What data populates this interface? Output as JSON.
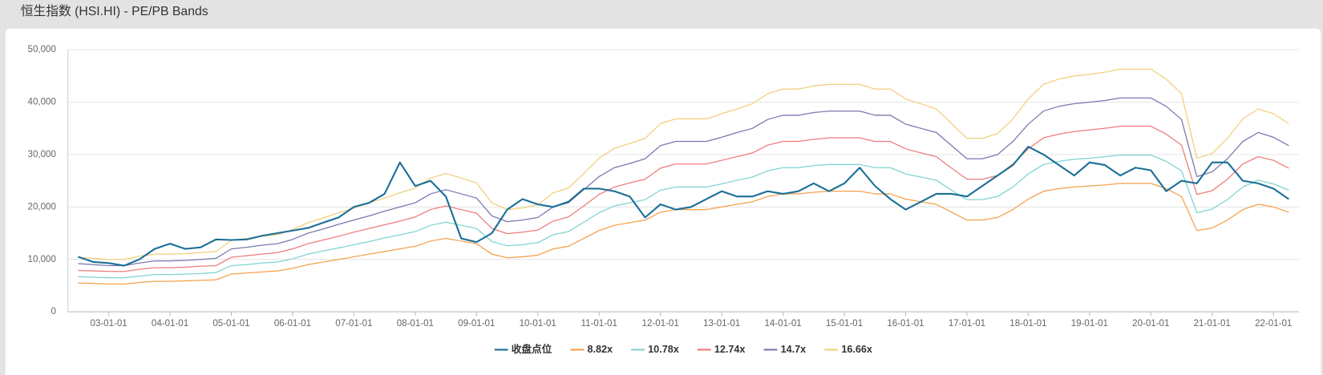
{
  "chart_data": {
    "type": "line",
    "title": "恒生指数 (HSI.HI) - PE/PB Bands",
    "x": [
      "02-07-01",
      "02-10-01",
      "03-01-01",
      "03-04-01",
      "03-07-01",
      "03-10-01",
      "04-01-01",
      "04-04-01",
      "04-07-01",
      "04-10-01",
      "05-01-01",
      "05-04-01",
      "05-07-01",
      "05-10-01",
      "06-01-01",
      "06-04-01",
      "06-07-01",
      "06-10-01",
      "07-01-01",
      "07-04-01",
      "07-07-01",
      "07-10-01",
      "08-01-01",
      "08-04-01",
      "08-07-01",
      "08-10-01",
      "09-01-01",
      "09-04-01",
      "09-07-01",
      "09-10-01",
      "10-01-01",
      "10-04-01",
      "10-07-01",
      "10-10-01",
      "11-01-01",
      "11-04-01",
      "11-07-01",
      "11-10-01",
      "12-01-01",
      "12-04-01",
      "12-07-01",
      "12-10-01",
      "13-01-01",
      "13-04-01",
      "13-07-01",
      "13-10-01",
      "14-01-01",
      "14-04-01",
      "14-07-01",
      "14-10-01",
      "15-01-01",
      "15-04-01",
      "15-07-01",
      "15-10-01",
      "16-01-01",
      "16-04-01",
      "16-07-01",
      "16-10-01",
      "17-01-01",
      "17-04-01",
      "17-07-01",
      "17-10-01",
      "18-01-01",
      "18-04-01",
      "18-07-01",
      "18-10-01",
      "19-01-01",
      "19-04-01",
      "19-07-01",
      "19-10-01",
      "20-01-01",
      "20-04-01",
      "20-07-01",
      "20-10-01",
      "21-01-01",
      "21-04-01",
      "21-07-01",
      "21-10-01",
      "22-01-01",
      "22-04-01"
    ],
    "xlim": [
      "02-05-01",
      "22-06-01"
    ],
    "xticks": [
      "03-01-01",
      "04-01-01",
      "05-01-01",
      "06-01-01",
      "07-01-01",
      "08-01-01",
      "09-01-01",
      "10-01-01",
      "11-01-01",
      "12-01-01",
      "13-01-01",
      "14-01-01",
      "15-01-01",
      "16-01-01",
      "17-01-01",
      "18-01-01",
      "19-01-01",
      "20-01-01",
      "21-01-01",
      "22-01-01"
    ],
    "ylim": [
      0,
      50000
    ],
    "yticks": [
      0,
      {
        "value": 10000,
        "label": "10,000"
      },
      {
        "value": 20000,
        "label": "20,000"
      },
      {
        "value": 30000,
        "label": "30,000"
      },
      {
        "value": 40000,
        "label": "40,000"
      },
      {
        "value": 50000,
        "label": "50,000"
      }
    ],
    "grid": true,
    "legend": "bottom",
    "series": [
      {
        "name": "收盘点位",
        "color": "#1b6f97",
        "values": [
          10500,
          9500,
          9300,
          8800,
          10000,
          12000,
          13000,
          12000,
          12300,
          13800,
          13700,
          13800,
          14500,
          15000,
          15500,
          16000,
          17000,
          18000,
          20000,
          20800,
          22500,
          28500,
          24000,
          25000,
          22000,
          14000,
          13300,
          15000,
          19500,
          21500,
          20500,
          20000,
          21000,
          23500,
          23500,
          23000,
          22000,
          18000,
          20500,
          19500,
          20000,
          21500,
          23000,
          22000,
          22000,
          23000,
          22500,
          23000,
          24500,
          23000,
          24500,
          27500,
          24000,
          21500,
          19500,
          21000,
          22500,
          22500,
          22000,
          24000,
          26000,
          28000,
          31500,
          30000,
          28000,
          26000,
          28500,
          28000,
          26000,
          27500,
          27000,
          23000,
          25000,
          24500,
          28500,
          28500,
          25000,
          24500,
          23500,
          21500
        ]
      },
      {
        "name": "8.82x",
        "color": "#f5a04a",
        "values": [
          5500,
          5400,
          5300,
          5300,
          5600,
          5800,
          5800,
          5900,
          6000,
          6100,
          7200,
          7400,
          7600,
          7800,
          8300,
          9000,
          9500,
          10000,
          10500,
          11000,
          11500,
          12000,
          12500,
          13500,
          14000,
          13500,
          13000,
          11000,
          10300,
          10500,
          10800,
          12000,
          12500,
          14000,
          15500,
          16500,
          17000,
          17500,
          19000,
          19500,
          19500,
          19500,
          20000,
          20500,
          21000,
          22000,
          22500,
          22500,
          22800,
          23000,
          23000,
          23000,
          22500,
          22500,
          21500,
          21000,
          20500,
          19000,
          17500,
          17500,
          18000,
          19500,
          21500,
          23000,
          23500,
          23800,
          24000,
          24200,
          24500,
          24500,
          24500,
          23500,
          22000,
          15500,
          16000,
          17500,
          19500,
          20500,
          20000,
          19000
        ]
      },
      {
        "name": "10.78x",
        "color": "#7fd3d0",
        "values": [
          6700,
          6600,
          6500,
          6500,
          6800,
          7100,
          7100,
          7200,
          7300,
          7500,
          8800,
          9000,
          9300,
          9500,
          10100,
          11000,
          11600,
          12200,
          12800,
          13400,
          14100,
          14700,
          15300,
          16500,
          17100,
          16500,
          15900,
          13400,
          12600,
          12800,
          13200,
          14700,
          15300,
          17100,
          18900,
          20200,
          20800,
          21400,
          23200,
          23800,
          23800,
          23800,
          24400,
          25100,
          25700,
          26900,
          27500,
          27500,
          27900,
          28100,
          28100,
          28100,
          27500,
          27500,
          26300,
          25700,
          25100,
          23200,
          21400,
          21400,
          22000,
          23800,
          26300,
          28100,
          28700,
          29100,
          29300,
          29600,
          29900,
          29900,
          29900,
          28700,
          26900,
          18900,
          19600,
          21400,
          23800,
          25100,
          24400,
          23200
        ]
      },
      {
        "name": "12.74x",
        "color": "#ee7b7b",
        "values": [
          7900,
          7800,
          7700,
          7700,
          8100,
          8400,
          8400,
          8500,
          8700,
          8800,
          10400,
          10700,
          11000,
          11300,
          12000,
          13000,
          13700,
          14400,
          15200,
          15900,
          16600,
          17300,
          18100,
          19500,
          20200,
          19500,
          18800,
          15900,
          14900,
          15200,
          15600,
          17300,
          18100,
          20200,
          22400,
          23800,
          24600,
          25300,
          27400,
          28200,
          28200,
          28200,
          28900,
          29600,
          30300,
          31800,
          32500,
          32500,
          32900,
          33200,
          33200,
          33200,
          32500,
          32500,
          31100,
          30300,
          29600,
          27400,
          25300,
          25300,
          26000,
          28200,
          31100,
          33200,
          33900,
          34400,
          34700,
          35000,
          35400,
          35400,
          35400,
          33900,
          31800,
          22400,
          23100,
          25300,
          28200,
          29600,
          28900,
          27400
        ]
      },
      {
        "name": "14.7x",
        "color": "#7a77b0",
        "values": [
          9200,
          9000,
          8800,
          8800,
          9300,
          9700,
          9700,
          9800,
          10000,
          10200,
          12000,
          12300,
          12700,
          13000,
          13800,
          15000,
          15800,
          16700,
          17500,
          18300,
          19200,
          20000,
          20800,
          22500,
          23300,
          22500,
          21700,
          18300,
          17200,
          17500,
          18000,
          20000,
          20800,
          23300,
          25800,
          27500,
          28300,
          29200,
          31700,
          32500,
          32500,
          32500,
          33300,
          34200,
          35000,
          36700,
          37500,
          37500,
          38000,
          38300,
          38300,
          38300,
          37500,
          37500,
          35800,
          35000,
          34200,
          31700,
          29200,
          29200,
          30000,
          32500,
          35800,
          38300,
          39200,
          39700,
          40000,
          40300,
          40800,
          40800,
          40800,
          39200,
          36700,
          25800,
          26700,
          29200,
          32500,
          34200,
          33300,
          31700
        ]
      },
      {
        "name": "16.66x",
        "color": "#f2cf7b",
        "values": [
          10400,
          10200,
          10000,
          10000,
          10600,
          11000,
          11000,
          11100,
          11300,
          11500,
          13600,
          14000,
          14400,
          14700,
          15700,
          17000,
          17900,
          18900,
          19800,
          20800,
          21700,
          22700,
          23600,
          25500,
          26400,
          25500,
          24600,
          20800,
          19500,
          19800,
          20400,
          22700,
          23600,
          26400,
          29300,
          31200,
          32100,
          33100,
          35900,
          36800,
          36800,
          36800,
          37800,
          38700,
          39700,
          41600,
          42500,
          42500,
          43100,
          43400,
          43400,
          43400,
          42500,
          42500,
          40600,
          39700,
          38700,
          35900,
          33100,
          33100,
          34000,
          36800,
          40600,
          43400,
          44400,
          45000,
          45300,
          45700,
          46300,
          46300,
          46300,
          44400,
          41600,
          29300,
          30200,
          33100,
          36800,
          38700,
          37800,
          35900
        ]
      }
    ]
  }
}
